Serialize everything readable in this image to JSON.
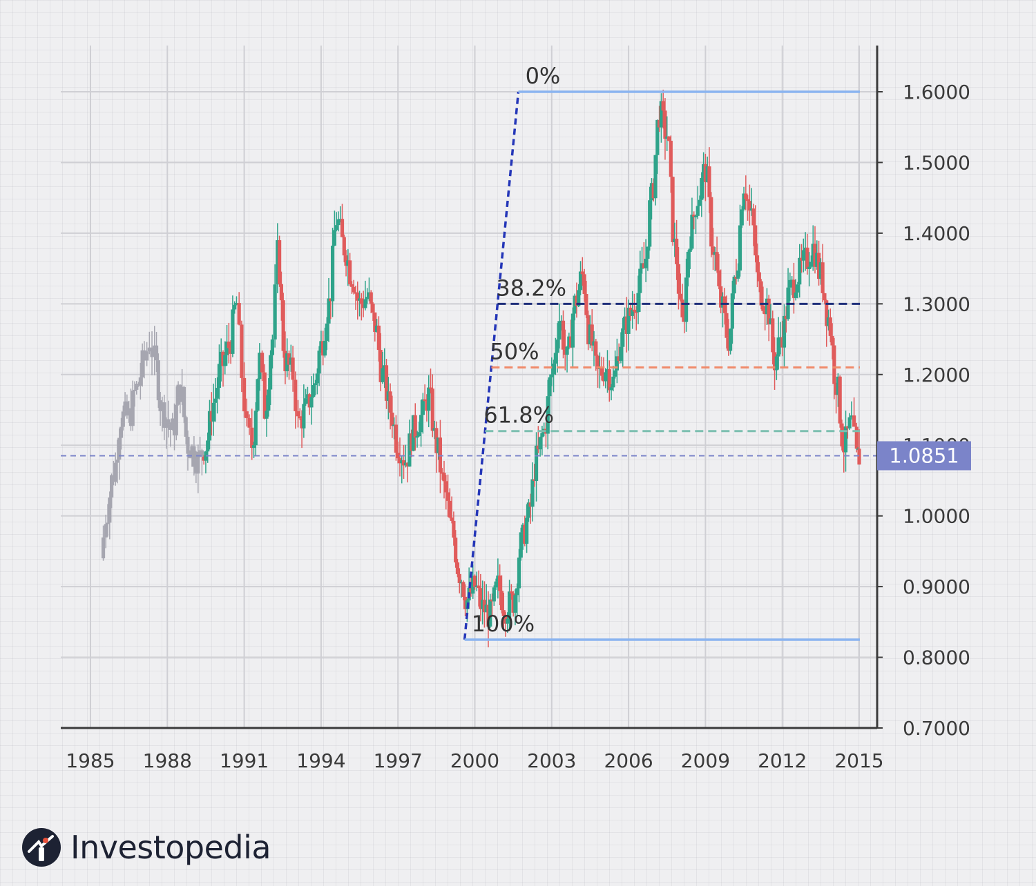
{
  "chart_data": {
    "type": "candlestick",
    "ylim": [
      0.7,
      1.65
    ],
    "xlim": [
      1984.9,
      2015.6
    ],
    "x_ticks": [
      "1985",
      "1988",
      "1991",
      "1994",
      "1997",
      "2000",
      "2003",
      "2006",
      "2009",
      "2012",
      "2015"
    ],
    "y_ticks": [
      "1.6000",
      "1.5000",
      "1.4000",
      "1.3000",
      "1.2000",
      "1.1000",
      "1.0000",
      "0.9000",
      "0.8000",
      "0.7000"
    ],
    "grid": true,
    "current_price": {
      "value": 1.0851,
      "label": "1.0851"
    },
    "fib_swing": {
      "low": {
        "x": 1999.6,
        "y": 0.825
      },
      "high": {
        "x": 2001.7,
        "y": 1.6
      }
    },
    "fib_levels": [
      {
        "label": "0%",
        "value": 1.6,
        "color": "#8ab4f0"
      },
      {
        "label": "38.2%",
        "value": 1.3,
        "color": "#1f2f7a"
      },
      {
        "label": "50%",
        "value": 1.21,
        "color": "#f08a6a"
      },
      {
        "label": "61.8%",
        "value": 1.12,
        "color": "#7cbfb0"
      },
      {
        "label": "100%",
        "value": 0.825,
        "color": "#8ab4f0"
      }
    ],
    "price_path": [
      [
        1985.4,
        0.94
      ],
      [
        1985.6,
        1.0
      ],
      [
        1985.9,
        1.06
      ],
      [
        1986.2,
        1.14
      ],
      [
        1986.5,
        1.14
      ],
      [
        1986.8,
        1.18
      ],
      [
        1987.1,
        1.22
      ],
      [
        1987.3,
        1.25
      ],
      [
        1987.5,
        1.22
      ],
      [
        1987.8,
        1.15
      ],
      [
        1988.2,
        1.12
      ],
      [
        1988.5,
        1.18
      ],
      [
        1988.8,
        1.1
      ],
      [
        1989.2,
        1.08
      ],
      [
        1989.5,
        1.1
      ],
      [
        1989.8,
        1.16
      ],
      [
        1990.1,
        1.21
      ],
      [
        1990.4,
        1.24
      ],
      [
        1990.7,
        1.3
      ],
      [
        1990.9,
        1.2
      ],
      [
        1991.1,
        1.12
      ],
      [
        1991.3,
        1.1
      ],
      [
        1991.6,
        1.22
      ],
      [
        1991.8,
        1.15
      ],
      [
        1992.1,
        1.25
      ],
      [
        1992.3,
        1.37
      ],
      [
        1992.6,
        1.22
      ],
      [
        1992.9,
        1.2
      ],
      [
        1993.1,
        1.13
      ],
      [
        1993.4,
        1.15
      ],
      [
        1993.7,
        1.18
      ],
      [
        1994.0,
        1.24
      ],
      [
        1994.3,
        1.3
      ],
      [
        1994.6,
        1.42
      ],
      [
        1994.9,
        1.38
      ],
      [
        1995.2,
        1.34
      ],
      [
        1995.5,
        1.3
      ],
      [
        1995.8,
        1.31
      ],
      [
        1996.1,
        1.27
      ],
      [
        1996.4,
        1.2
      ],
      [
        1996.7,
        1.15
      ],
      [
        1997.0,
        1.1
      ],
      [
        1997.3,
        1.08
      ],
      [
        1997.6,
        1.12
      ],
      [
        1997.9,
        1.14
      ],
      [
        1998.2,
        1.17
      ],
      [
        1998.5,
        1.1
      ],
      [
        1998.8,
        1.04
      ],
      [
        1999.1,
        0.98
      ],
      [
        1999.4,
        0.92
      ],
      [
        1999.7,
        0.88
      ],
      [
        2000.0,
        0.9
      ],
      [
        2000.3,
        0.87
      ],
      [
        2000.6,
        0.86
      ],
      [
        2000.9,
        0.9
      ],
      [
        2001.2,
        0.87
      ],
      [
        2001.5,
        0.88
      ],
      [
        2001.8,
        0.96
      ],
      [
        2002.1,
        1.0
      ],
      [
        2002.4,
        1.08
      ],
      [
        2002.7,
        1.12
      ],
      [
        2003.0,
        1.2
      ],
      [
        2003.3,
        1.28
      ],
      [
        2003.6,
        1.22
      ],
      [
        2003.9,
        1.3
      ],
      [
        2004.2,
        1.34
      ],
      [
        2004.5,
        1.25
      ],
      [
        2004.8,
        1.2
      ],
      [
        2005.1,
        1.21
      ],
      [
        2005.4,
        1.19
      ],
      [
        2005.7,
        1.25
      ],
      [
        2006.0,
        1.28
      ],
      [
        2006.3,
        1.31
      ],
      [
        2006.6,
        1.35
      ],
      [
        2006.9,
        1.45
      ],
      [
        2007.2,
        1.57
      ],
      [
        2007.5,
        1.54
      ],
      [
        2007.8,
        1.38
      ],
      [
        2008.1,
        1.27
      ],
      [
        2008.4,
        1.4
      ],
      [
        2008.7,
        1.45
      ],
      [
        2009.0,
        1.49
      ],
      [
        2009.3,
        1.38
      ],
      [
        2009.6,
        1.3
      ],
      [
        2009.9,
        1.25
      ],
      [
        2010.2,
        1.35
      ],
      [
        2010.5,
        1.47
      ],
      [
        2010.8,
        1.42
      ],
      [
        2011.1,
        1.32
      ],
      [
        2011.4,
        1.3
      ],
      [
        2011.7,
        1.22
      ],
      [
        2012.0,
        1.26
      ],
      [
        2012.3,
        1.32
      ],
      [
        2012.6,
        1.34
      ],
      [
        2012.9,
        1.36
      ],
      [
        2013.2,
        1.38
      ],
      [
        2013.5,
        1.34
      ],
      [
        2013.8,
        1.28
      ],
      [
        2014.1,
        1.19
      ],
      [
        2014.4,
        1.1
      ],
      [
        2014.7,
        1.13
      ],
      [
        2014.9,
        1.08
      ],
      [
        2015.0,
        1.0851
      ]
    ],
    "colors": {
      "up": "#2fa38a",
      "down": "#e05b5b",
      "pre": "#a6a6b0",
      "current_price": "#7b84c9"
    }
  },
  "logo": {
    "text": "Investopedia"
  }
}
